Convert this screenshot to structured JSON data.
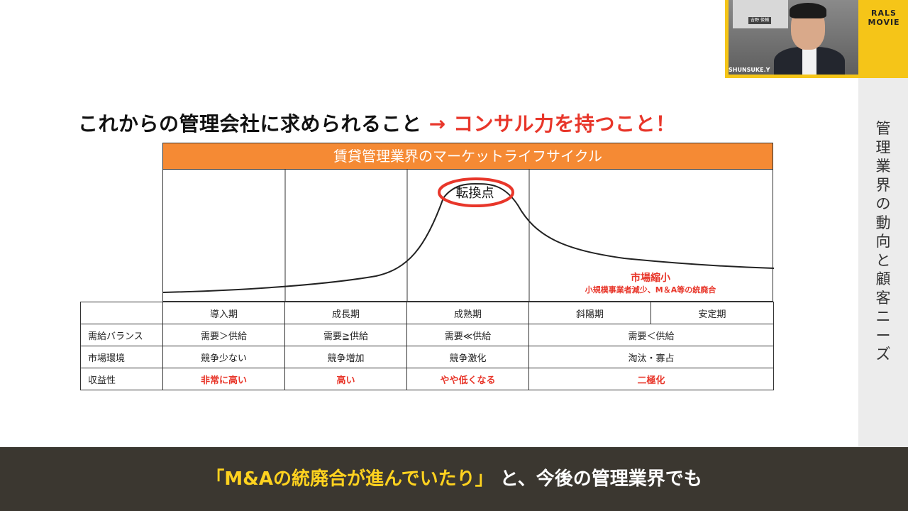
{
  "slide": {
    "title_main": "これからの管理会社に求められること",
    "title_accent": "→ コンサル力を持つこと！",
    "chart_header": "賃貸管理業界のマーケットライフサイクル",
    "turning_point": "転換点",
    "market_shrink": "市場縮小",
    "market_shrink_detail": "小規模事業者減少、M＆A等の統廃合"
  },
  "table": {
    "stages": [
      "導入期",
      "成長期",
      "成熟期",
      "斜陽期",
      "安定期"
    ],
    "rows": [
      {
        "label": "需給バランス",
        "cells": [
          "需要＞供給",
          "需要≧供給",
          "需要≪供給",
          "需要＜供給"
        ]
      },
      {
        "label": "市場環境",
        "cells": [
          "競争少ない",
          "競争増加",
          "競争激化",
          "淘汰・寡占"
        ]
      },
      {
        "label": "収益性",
        "cells": [
          "非常に高い",
          "高い",
          "やや低くなる",
          "二極化"
        ]
      }
    ]
  },
  "sidebar": {
    "text": "管理業界の動向と顧客ニーズ"
  },
  "webcam": {
    "name_label": "SHUNSUKE.Y",
    "nameplate": "吉野 俊輔",
    "brand_line1": "RALS",
    "brand_line2": "MOVIE"
  },
  "caption": {
    "quoted": "「M&Aの統廃合が進んでいたり」",
    "rest": "と、今後の管理業界でも"
  },
  "colors": {
    "accent_red": "#e8362a",
    "header_orange": "#f58a34",
    "brand_yellow": "#f5c518",
    "caption_bg": "#3b3730",
    "caption_highlight": "#ffd21f"
  }
}
